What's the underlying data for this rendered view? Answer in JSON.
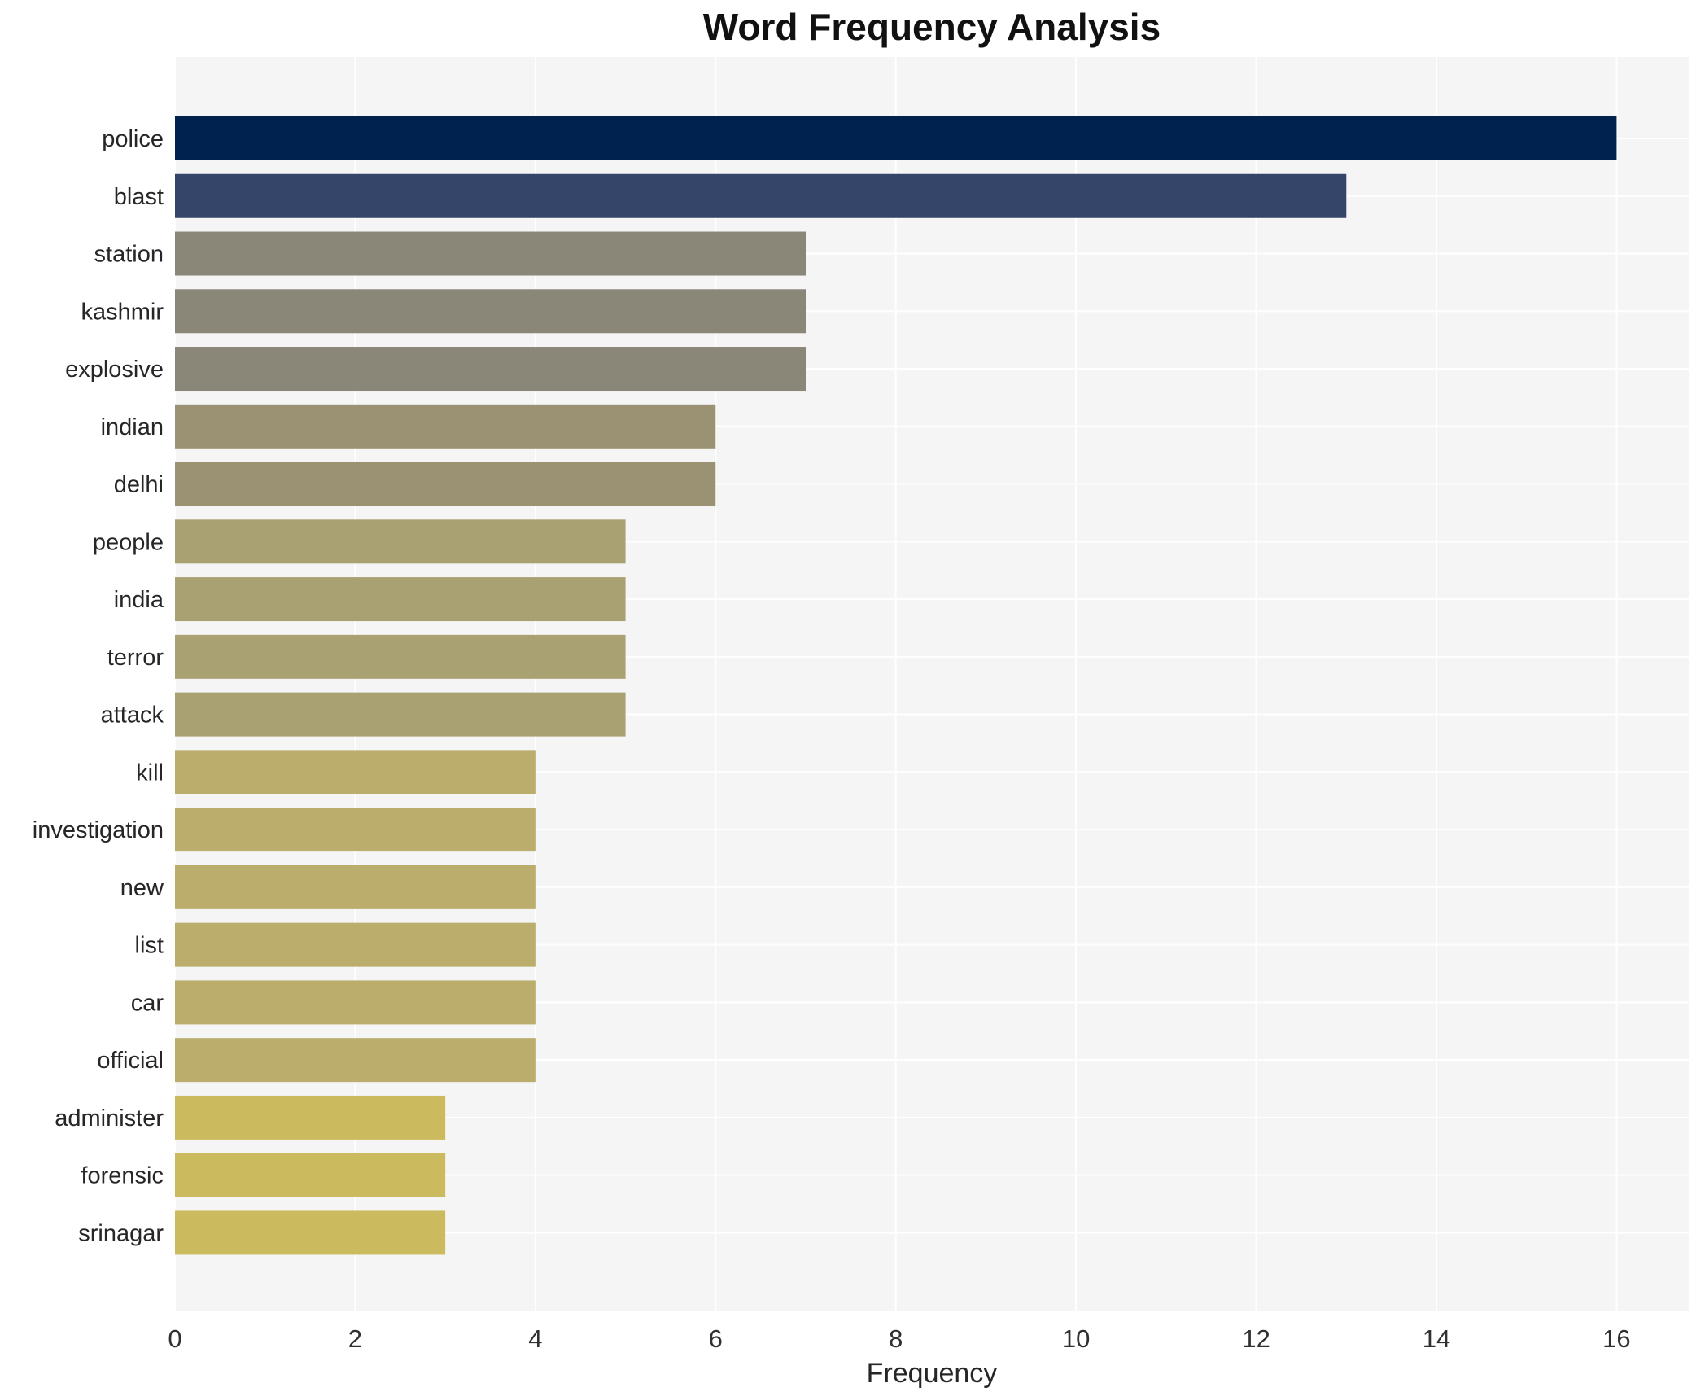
{
  "chart_data": {
    "type": "bar",
    "orientation": "horizontal",
    "title": "Word Frequency Analysis",
    "xlabel": "Frequency",
    "ylabel": "",
    "categories": [
      "police",
      "blast",
      "station",
      "kashmir",
      "explosive",
      "indian",
      "delhi",
      "people",
      "india",
      "terror",
      "attack",
      "kill",
      "investigation",
      "new",
      "list",
      "car",
      "official",
      "administer",
      "forensic",
      "srinagar"
    ],
    "values": [
      16,
      13,
      7,
      7,
      7,
      6,
      6,
      5,
      5,
      5,
      5,
      4,
      4,
      4,
      4,
      4,
      4,
      3,
      3,
      3
    ],
    "bar_colors": [
      "#00224e",
      "#344569",
      "#8a8678",
      "#8a8678",
      "#8a8678",
      "#9a9273",
      "#9a9273",
      "#aaa173",
      "#aaa173",
      "#aaa173",
      "#aaa173",
      "#bbae6c",
      "#bbae6c",
      "#bbae6c",
      "#bbae6c",
      "#bbae6c",
      "#bbae6c",
      "#ccba5e",
      "#ccba5e",
      "#ccba5e"
    ],
    "xlim": [
      0,
      16.8
    ],
    "xticks": [
      0,
      2,
      4,
      6,
      8,
      10,
      12,
      14,
      16
    ],
    "grid": true,
    "legend": "none",
    "plot_bg_color": "#f5f5f6",
    "grid_color": "#ffffff",
    "figure_bg_color": "#ffffff"
  }
}
